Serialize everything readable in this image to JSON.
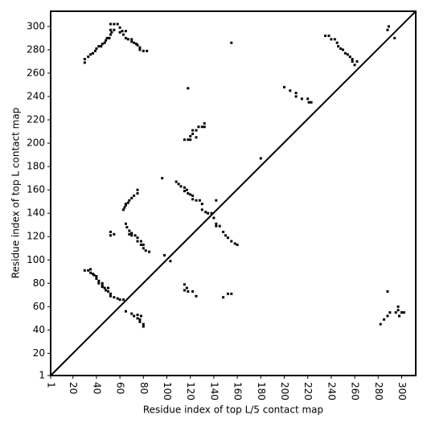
{
  "chart_data": {
    "type": "scatter",
    "xlabel": "Residue index of top L/5 contact map",
    "ylabel": "Residue index of top L contact map",
    "color": "#000000",
    "xlim": [
      1,
      312
    ],
    "ylim": [
      1,
      313
    ],
    "xticks": [
      1,
      20,
      40,
      60,
      80,
      100,
      120,
      140,
      160,
      180,
      200,
      220,
      240,
      260,
      280,
      300
    ],
    "yticks": [
      1,
      20,
      40,
      60,
      80,
      100,
      120,
      140,
      160,
      180,
      200,
      220,
      240,
      260,
      280,
      300
    ],
    "x": [
      30,
      30,
      33,
      35,
      37,
      39,
      40,
      42,
      44,
      45,
      47,
      48,
      49,
      51,
      52,
      53,
      52,
      55,
      52,
      55,
      58,
      60,
      62,
      63,
      65,
      67,
      70,
      72,
      75,
      77,
      77,
      80,
      83,
      60,
      65,
      70,
      74,
      235,
      238,
      240,
      243,
      245,
      246,
      248,
      250,
      252,
      254,
      256,
      258,
      258,
      262,
      260,
      288,
      289,
      294,
      200,
      205,
      210,
      210,
      215,
      220,
      221,
      223,
      155,
      118,
      180,
      115,
      118,
      120,
      122,
      122,
      125,
      127,
      130,
      132,
      132,
      120,
      125,
      96,
      108,
      110,
      112,
      115,
      117,
      118,
      120,
      122,
      122,
      125,
      128,
      130,
      130,
      133,
      135,
      138,
      140,
      142,
      142,
      145,
      142,
      115,
      63,
      64,
      65,
      67,
      68,
      70,
      72,
      75,
      75,
      65,
      65,
      66,
      68,
      70,
      70,
      73,
      75,
      75,
      78,
      78,
      80,
      80,
      82,
      85,
      68,
      52,
      55,
      52,
      148,
      150,
      152,
      155,
      158,
      160,
      98,
      103,
      30,
      33,
      35,
      37,
      38,
      40,
      40,
      42,
      42,
      45,
      45,
      47,
      48,
      50,
      52,
      52,
      55,
      58,
      60,
      63,
      35,
      45,
      50,
      65,
      70,
      72,
      75,
      75,
      77,
      77,
      80,
      80,
      78,
      115,
      117,
      118,
      122,
      125,
      115,
      148,
      152,
      155,
      282,
      285,
      288,
      290,
      295,
      297,
      297,
      300,
      302,
      298,
      288
    ],
    "values": [
      269,
      272,
      274,
      276,
      277,
      279,
      281,
      283,
      283,
      285,
      286,
      288,
      290,
      290,
      293,
      295,
      297,
      297,
      302,
      302,
      302,
      299,
      296,
      293,
      290,
      289,
      287,
      286,
      284,
      282,
      280,
      279,
      279,
      295,
      296,
      289,
      285,
      292,
      292,
      289,
      289,
      286,
      283,
      281,
      280,
      277,
      276,
      274,
      272,
      270,
      270,
      267,
      297,
      300,
      290,
      248,
      245,
      243,
      240,
      238,
      238,
      235,
      235,
      286,
      247,
      187,
      203,
      203,
      206,
      208,
      211,
      211,
      214,
      214,
      217,
      214,
      203,
      205,
      170,
      167,
      165,
      163,
      162,
      160,
      157,
      156,
      155,
      152,
      151,
      151,
      148,
      143,
      141,
      140,
      140,
      136,
      131,
      129,
      129,
      151,
      159,
      143,
      145,
      147,
      149,
      151,
      153,
      155,
      157,
      160,
      148,
      131,
      128,
      125,
      123,
      121,
      121,
      119,
      116,
      116,
      113,
      113,
      110,
      108,
      107,
      122,
      124,
      122,
      121,
      124,
      121,
      119,
      116,
      114,
      113,
      104,
      99,
      91,
      91,
      89,
      88,
      87,
      86,
      84,
      82,
      80,
      80,
      77,
      76,
      74,
      73,
      71,
      69,
      68,
      67,
      66,
      66,
      92,
      78,
      76,
      56,
      54,
      52,
      53,
      50,
      49,
      47,
      45,
      43,
      52,
      79,
      76,
      73,
      73,
      69,
      74,
      68,
      71,
      71,
      45,
      49,
      52,
      55,
      55,
      57,
      60,
      55,
      55,
      52,
      73
    ]
  }
}
